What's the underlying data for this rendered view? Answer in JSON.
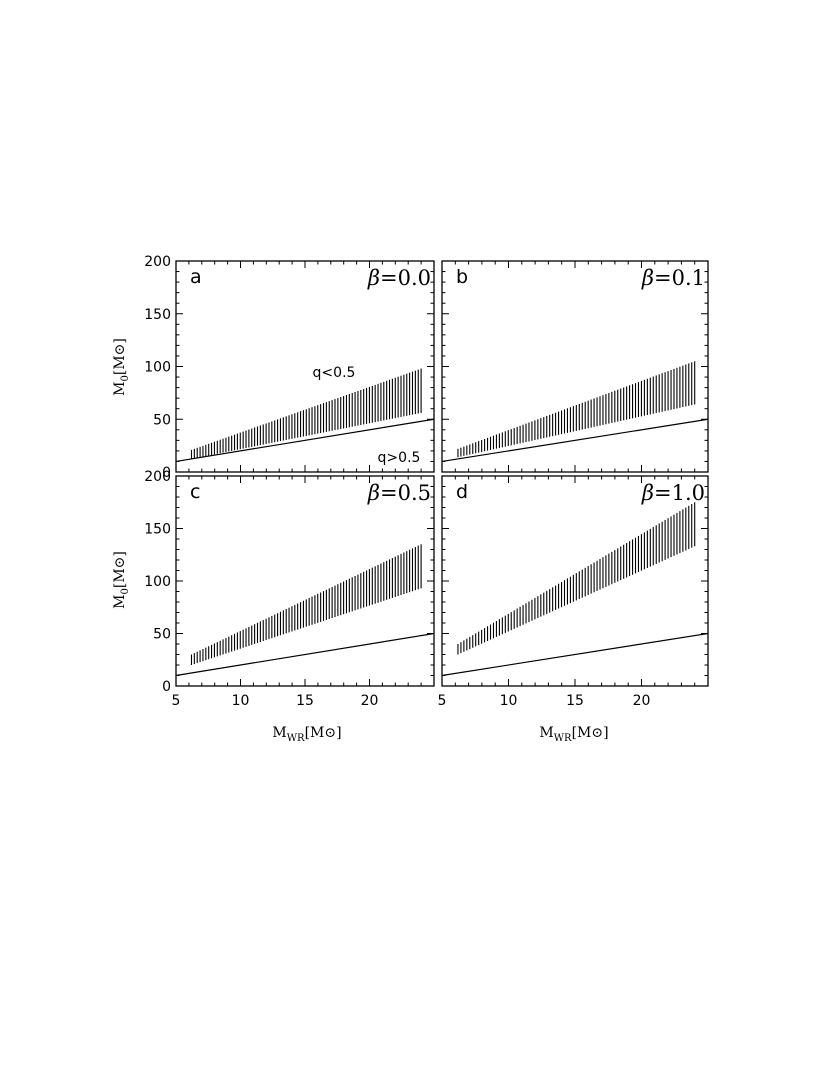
{
  "figure": {
    "ylabel_main": "M",
    "ylabel_sub": "0",
    "ylabel_unit": "[M",
    "ylabel_unit_close": "]",
    "xlabel_main": "M",
    "xlabel_sub": "WR",
    "xlabel_unit": "[M",
    "xlabel_unit_close": "]",
    "sun_symbol": "⊙"
  },
  "chart_data": [
    {
      "type": "line",
      "panel": "a",
      "beta_symbol": "β",
      "beta_value": "=0.0",
      "annotations": [
        "q<0.5",
        "q>0.5"
      ],
      "xlim": [
        5,
        25
      ],
      "ylim": [
        0,
        200
      ],
      "xticks": [
        5,
        10,
        15,
        20
      ],
      "yticks": [
        0,
        50,
        100,
        150,
        200
      ],
      "series": [
        {
          "kind": "line",
          "x": [
            5,
            25
          ],
          "y": [
            10,
            50
          ]
        },
        {
          "kind": "band",
          "x_range": [
            6.2,
            24
          ],
          "lower": [
            12.4,
            56
          ],
          "upper": [
            21,
            98
          ]
        }
      ]
    },
    {
      "type": "line",
      "panel": "b",
      "beta_symbol": "β",
      "beta_value": "=0.1",
      "annotations": [],
      "xlim": [
        5,
        25
      ],
      "ylim": [
        0,
        200
      ],
      "xticks": [
        5,
        10,
        15,
        20
      ],
      "yticks": [
        0,
        50,
        100,
        150,
        200
      ],
      "series": [
        {
          "kind": "line",
          "x": [
            5,
            25
          ],
          "y": [
            10,
            50
          ]
        },
        {
          "kind": "band",
          "x_range": [
            6.2,
            24
          ],
          "lower": [
            14,
            64
          ],
          "upper": [
            22,
            105
          ]
        }
      ]
    },
    {
      "type": "line",
      "panel": "c",
      "beta_symbol": "β",
      "beta_value": "=0.5",
      "annotations": [],
      "xlim": [
        5,
        25
      ],
      "ylim": [
        0,
        200
      ],
      "xticks": [
        5,
        10,
        15,
        20
      ],
      "yticks": [
        0,
        50,
        100,
        150,
        200
      ],
      "series": [
        {
          "kind": "line",
          "x": [
            5,
            25
          ],
          "y": [
            10,
            50
          ]
        },
        {
          "kind": "band",
          "x_range": [
            6.2,
            24
          ],
          "lower": [
            20,
            93
          ],
          "upper": [
            30,
            135
          ]
        }
      ]
    },
    {
      "type": "line",
      "panel": "d",
      "beta_symbol": "β",
      "beta_value": "=1.0",
      "annotations": [],
      "xlim": [
        5,
        25
      ],
      "ylim": [
        0,
        200
      ],
      "xticks": [
        5,
        10,
        15,
        20
      ],
      "yticks": [
        0,
        50,
        100,
        150,
        200
      ],
      "series": [
        {
          "kind": "line",
          "x": [
            5,
            25
          ],
          "y": [
            10,
            50
          ]
        },
        {
          "kind": "band",
          "x_range": [
            6.2,
            24
          ],
          "lower": [
            30,
            133
          ],
          "upper": [
            40,
            175
          ]
        }
      ]
    }
  ]
}
